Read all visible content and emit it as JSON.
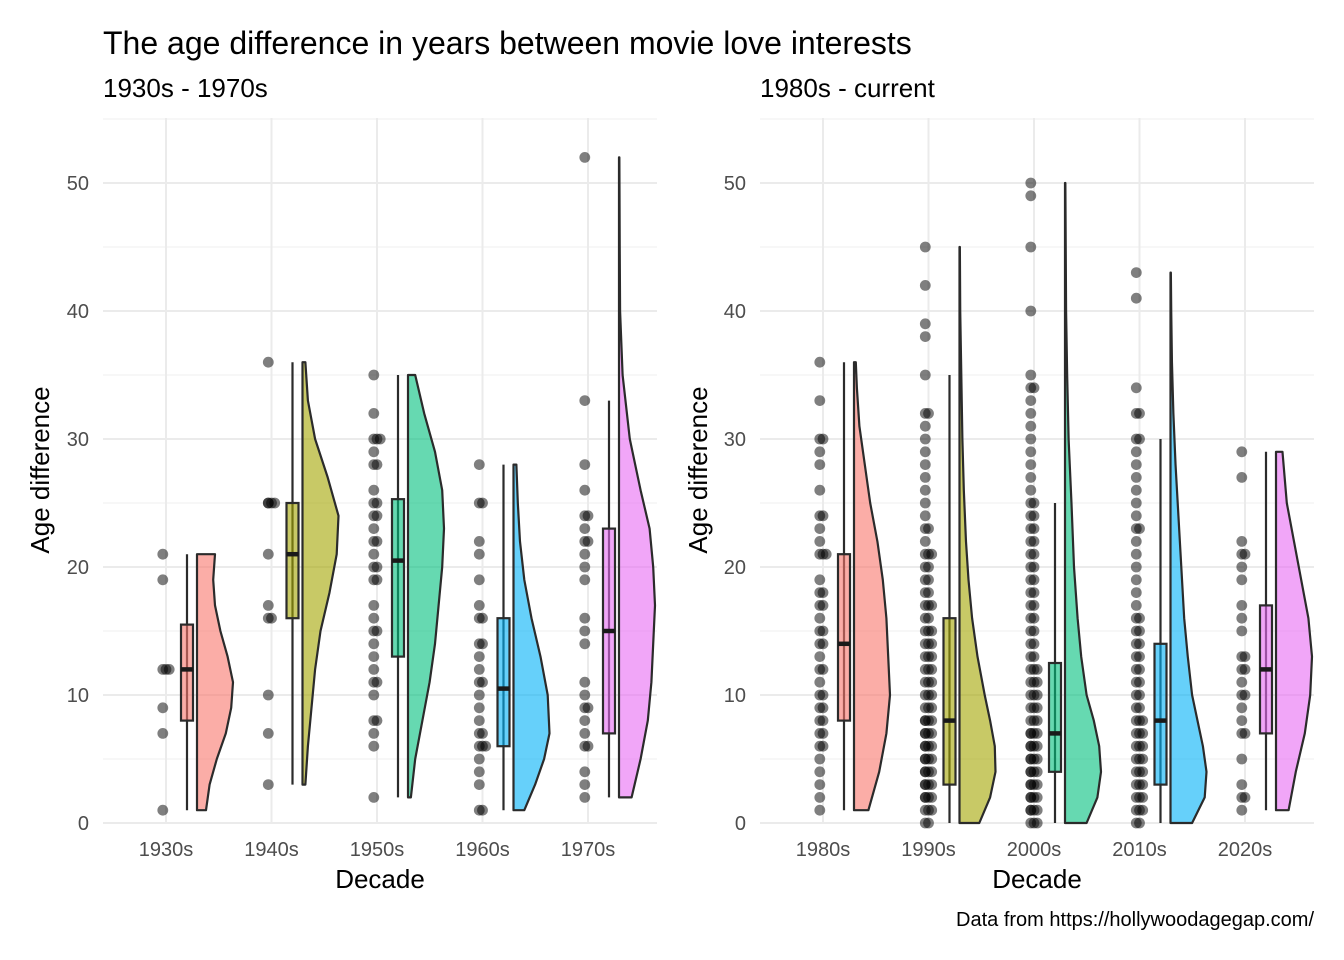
{
  "page": {
    "title": "The age difference in years between movie love interests",
    "caption": "Data from https://hollywoodagegap.com/"
  },
  "colors": {
    "series": [
      "#F8766D",
      "#A3A500",
      "#00BF7D",
      "#00B0F6",
      "#E76BF3"
    ]
  },
  "chart_data": [
    {
      "type": "raincloud",
      "subtitle": "1930s - 1970s",
      "xlabel": "Decade",
      "ylabel": "Age difference",
      "ylim": [
        0,
        55
      ],
      "yticks": [
        0,
        10,
        20,
        30,
        40,
        50
      ],
      "grid": true,
      "categories": [
        "1930s",
        "1940s",
        "1950s",
        "1960s",
        "1970s"
      ],
      "series": [
        {
          "category": "1930s",
          "points": [
            1,
            7,
            9,
            12,
            12,
            12,
            19,
            21
          ],
          "box": {
            "min": 1,
            "q1": 8,
            "median": 12,
            "q3": 15.5,
            "max": 21
          },
          "density": {
            "ys": [
              1,
              3,
              5,
              7,
              9,
              11,
              13,
              15,
              17,
              19,
              21
            ],
            "ws": [
              0.25,
              0.35,
              0.55,
              0.8,
              0.95,
              1.0,
              0.85,
              0.65,
              0.5,
              0.45,
              0.5
            ]
          }
        },
        {
          "category": "1940s",
          "points": [
            3,
            7,
            10,
            16,
            16,
            17,
            21,
            25,
            25,
            25,
            25,
            36
          ],
          "box": {
            "min": 3,
            "q1": 16,
            "median": 21,
            "q3": 25,
            "max": 36
          },
          "density": {
            "ys": [
              3,
              6,
              9,
              12,
              15,
              18,
              21,
              24,
              27,
              30,
              33,
              36
            ],
            "ws": [
              0.08,
              0.15,
              0.25,
              0.35,
              0.5,
              0.75,
              0.95,
              1.0,
              0.7,
              0.35,
              0.15,
              0.08
            ]
          }
        },
        {
          "category": "1950s",
          "points": [
            2,
            6,
            7,
            8,
            8,
            10,
            11,
            11,
            12,
            13,
            14,
            15,
            15,
            16,
            17,
            19,
            19,
            20,
            20,
            21,
            22,
            22,
            23,
            24,
            24,
            25,
            25,
            26,
            28,
            28,
            29,
            30,
            30,
            30,
            32,
            35
          ],
          "box": {
            "min": 2,
            "q1": 13,
            "median": 20.5,
            "q3": 25.3,
            "max": 35
          },
          "density": {
            "ys": [
              2,
              5,
              8,
              11,
              14,
              17,
              20,
              23,
              26,
              29,
              32,
              35
            ],
            "ws": [
              0.08,
              0.2,
              0.4,
              0.6,
              0.75,
              0.85,
              0.95,
              1.0,
              0.95,
              0.75,
              0.45,
              0.2
            ]
          }
        },
        {
          "category": "1960s",
          "points": [
            1,
            1,
            3,
            4,
            5,
            6,
            6,
            6,
            7,
            7,
            8,
            9,
            10,
            11,
            11,
            12,
            13,
            14,
            14,
            16,
            16,
            17,
            19,
            21,
            22,
            25,
            25,
            28
          ],
          "box": {
            "min": 1,
            "q1": 6,
            "median": 10.5,
            "q3": 16,
            "max": 28
          },
          "density": {
            "ys": [
              1,
              3,
              5,
              7,
              10,
              13,
              16,
              19,
              22,
              25,
              28
            ],
            "ws": [
              0.3,
              0.6,
              0.85,
              1.0,
              0.95,
              0.75,
              0.5,
              0.3,
              0.18,
              0.12,
              0.08
            ]
          }
        },
        {
          "category": "1970s",
          "points": [
            2,
            3,
            4,
            6,
            6,
            7,
            8,
            9,
            9,
            10,
            11,
            14,
            15,
            16,
            19,
            20,
            21,
            22,
            22,
            23,
            24,
            24,
            26,
            28,
            33,
            52
          ],
          "box": {
            "min": 2,
            "q1": 7,
            "median": 15,
            "q3": 23,
            "max": 33
          },
          "density": {
            "ys": [
              2,
              5,
              8,
              11,
              14,
              17,
              20,
              23,
              26,
              30,
              35,
              40,
              45,
              52
            ],
            "ws": [
              0.35,
              0.6,
              0.8,
              0.9,
              0.95,
              1.0,
              0.95,
              0.85,
              0.6,
              0.3,
              0.1,
              0.03,
              0.02,
              0.01
            ]
          }
        }
      ]
    },
    {
      "type": "raincloud",
      "subtitle": "1980s - current",
      "xlabel": "Decade",
      "ylabel": "Age difference",
      "ylim": [
        0,
        55
      ],
      "yticks": [
        0,
        10,
        20,
        30,
        40,
        50
      ],
      "grid": true,
      "categories": [
        "1980s",
        "1990s",
        "2000s",
        "2010s",
        "2020s"
      ],
      "series": [
        {
          "category": "1980s",
          "points": [
            1,
            2,
            3,
            4,
            5,
            6,
            6,
            7,
            7,
            8,
            8,
            9,
            9,
            10,
            10,
            11,
            12,
            12,
            13,
            14,
            14,
            15,
            15,
            16,
            17,
            17,
            18,
            18,
            19,
            21,
            21,
            21,
            22,
            23,
            24,
            24,
            26,
            28,
            29,
            30,
            30,
            33,
            36
          ],
          "box": {
            "min": 1,
            "q1": 8,
            "median": 14,
            "q3": 21,
            "max": 36
          },
          "density": {
            "ys": [
              1,
              4,
              7,
              10,
              13,
              16,
              19,
              22,
              25,
              28,
              31,
              34,
              36
            ],
            "ws": [
              0.4,
              0.7,
              0.9,
              1.0,
              0.95,
              0.9,
              0.8,
              0.65,
              0.45,
              0.3,
              0.15,
              0.08,
              0.05
            ]
          }
        },
        {
          "category": "1990s",
          "points": [
            0,
            0,
            1,
            1,
            1,
            2,
            2,
            2,
            2,
            3,
            3,
            3,
            3,
            4,
            4,
            4,
            4,
            5,
            5,
            5,
            5,
            6,
            6,
            6,
            6,
            7,
            7,
            7,
            7,
            8,
            8,
            8,
            8,
            9,
            9,
            9,
            10,
            10,
            10,
            11,
            11,
            11,
            12,
            12,
            12,
            13,
            13,
            13,
            14,
            14,
            14,
            15,
            15,
            15,
            16,
            16,
            17,
            17,
            17,
            18,
            18,
            19,
            19,
            20,
            20,
            21,
            21,
            21,
            22,
            23,
            23,
            24,
            25,
            26,
            27,
            28,
            29,
            30,
            31,
            32,
            32,
            35,
            38,
            39,
            42,
            45
          ],
          "box": {
            "min": 0,
            "q1": 3,
            "median": 8,
            "q3": 16,
            "max": 35
          },
          "density": {
            "ys": [
              0,
              2,
              4,
              6,
              8,
              10,
              13,
              16,
              19,
              22,
              26,
              30,
              35,
              40,
              45
            ],
            "ws": [
              0.55,
              0.85,
              1.0,
              0.98,
              0.85,
              0.7,
              0.5,
              0.35,
              0.25,
              0.18,
              0.12,
              0.08,
              0.05,
              0.02,
              0.01
            ]
          }
        },
        {
          "category": "2000s",
          "points": [
            0,
            0,
            0,
            1,
            1,
            1,
            1,
            2,
            2,
            2,
            2,
            3,
            3,
            3,
            3,
            4,
            4,
            4,
            4,
            5,
            5,
            5,
            5,
            6,
            6,
            6,
            6,
            7,
            7,
            7,
            7,
            8,
            8,
            8,
            9,
            9,
            9,
            10,
            10,
            10,
            11,
            11,
            11,
            12,
            12,
            12,
            13,
            13,
            14,
            14,
            15,
            15,
            16,
            16,
            17,
            17,
            18,
            18,
            19,
            19,
            20,
            20,
            21,
            21,
            22,
            22,
            23,
            23,
            24,
            24,
            25,
            25,
            26,
            27,
            28,
            29,
            30,
            31,
            32,
            33,
            34,
            34,
            35,
            40,
            45,
            49,
            50
          ],
          "box": {
            "min": 0,
            "q1": 4,
            "median": 7,
            "q3": 12.5,
            "max": 25
          },
          "density": {
            "ys": [
              0,
              2,
              4,
              6,
              8,
              10,
              13,
              16,
              20,
              25,
              30,
              35,
              40,
              45,
              50
            ],
            "ws": [
              0.6,
              0.9,
              1.0,
              0.95,
              0.8,
              0.6,
              0.45,
              0.35,
              0.25,
              0.18,
              0.1,
              0.06,
              0.03,
              0.02,
              0.01
            ]
          }
        },
        {
          "category": "2010s",
          "points": [
            0,
            0,
            1,
            1,
            1,
            2,
            2,
            2,
            3,
            3,
            3,
            4,
            4,
            4,
            5,
            5,
            5,
            6,
            6,
            6,
            7,
            7,
            7,
            8,
            8,
            8,
            9,
            9,
            10,
            10,
            11,
            11,
            12,
            12,
            13,
            13,
            14,
            14,
            15,
            15,
            16,
            16,
            17,
            18,
            19,
            20,
            21,
            22,
            23,
            23,
            24,
            25,
            26,
            27,
            28,
            29,
            30,
            30,
            32,
            32,
            34,
            41,
            43
          ],
          "box": {
            "min": 0,
            "q1": 3,
            "median": 8,
            "q3": 14,
            "max": 30
          },
          "density": {
            "ys": [
              0,
              2,
              4,
              6,
              8,
              10,
              13,
              16,
              20,
              24,
              28,
              32,
              36,
              40,
              43
            ],
            "ws": [
              0.6,
              0.95,
              1.0,
              0.9,
              0.75,
              0.6,
              0.48,
              0.38,
              0.3,
              0.22,
              0.14,
              0.08,
              0.04,
              0.02,
              0.01
            ]
          }
        },
        {
          "category": "2020s",
          "points": [
            1,
            2,
            2,
            3,
            5,
            7,
            7,
            8,
            9,
            10,
            10,
            11,
            12,
            12,
            13,
            13,
            15,
            16,
            17,
            19,
            20,
            21,
            21,
            22,
            27,
            29
          ],
          "box": {
            "min": 1,
            "q1": 7,
            "median": 12,
            "q3": 17,
            "max": 29
          },
          "density": {
            "ys": [
              1,
              4,
              7,
              10,
              13,
              16,
              19,
              22,
              25,
              29
            ],
            "ws": [
              0.35,
              0.55,
              0.8,
              0.95,
              1.0,
              0.9,
              0.7,
              0.5,
              0.3,
              0.18
            ]
          }
        }
      ]
    }
  ]
}
